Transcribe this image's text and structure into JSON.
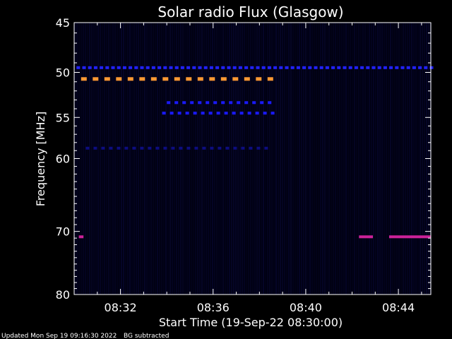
{
  "chart_data": {
    "type": "heatmap",
    "title": "Solar radio Flux (Glasgow)",
    "xlabel": "Start Time (19-Sep-22 08:30:00)",
    "ylabel": "Frequency [MHz]",
    "xlim_minutes": [
      0,
      15.4
    ],
    "ylim": [
      45,
      80
    ],
    "y_scale": "log",
    "y_ticks": [
      45,
      50,
      55,
      60,
      70,
      80
    ],
    "x_ticks": [
      {
        "minutes": 2,
        "label": "08:32"
      },
      {
        "minutes": 6,
        "label": "08:36"
      },
      {
        "minutes": 10,
        "label": "08:40"
      },
      {
        "minutes": 14,
        "label": "08:44"
      }
    ],
    "background": "#000010",
    "intensity_bands": [
      {
        "freq": 49.5,
        "t_start": 0.1,
        "t_end": 15.4,
        "level": "low",
        "color": "#2222ff",
        "dashed": true
      },
      {
        "freq": 50.7,
        "t_start": 0.3,
        "t_end": 8.5,
        "level": "high",
        "color": "#ff9933",
        "dashed": true
      },
      {
        "freq": 53.3,
        "t_start": 4.0,
        "t_end": 8.5,
        "level": "low",
        "color": "#1a1aff",
        "dashed": true
      },
      {
        "freq": 54.5,
        "t_start": 3.8,
        "t_end": 8.5,
        "level": "low",
        "color": "#1a1aff",
        "dashed": true
      },
      {
        "freq": 58.7,
        "t_start": 0.5,
        "t_end": 8.5,
        "level": "faint",
        "color": "#0d0d80",
        "dashed": true
      },
      {
        "freq": 70.8,
        "t_start": 12.3,
        "t_end": 12.9,
        "level": "medium",
        "color": "#cc2299",
        "dashed": false
      },
      {
        "freq": 70.8,
        "t_start": 13.6,
        "t_end": 15.4,
        "level": "medium",
        "color": "#cc2299",
        "dashed": false
      },
      {
        "freq": 70.8,
        "t_start": 0.2,
        "t_end": 0.4,
        "level": "medium",
        "color": "#cc2299",
        "dashed": false
      }
    ]
  },
  "footer": {
    "updated": "Updated Mon Sep 19 09:16:30 2022",
    "note": "BG subtracted"
  }
}
